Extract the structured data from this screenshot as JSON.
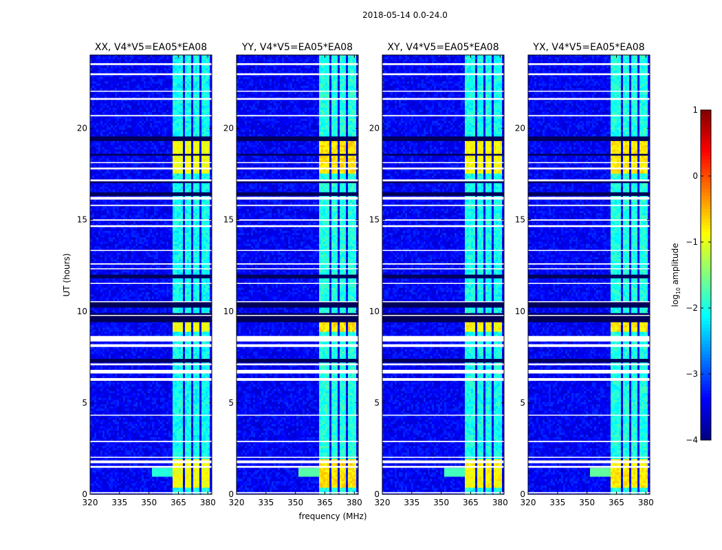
{
  "chart_data": {
    "type": "heatmap",
    "suptitle": "2018-05-14 0.0-24.0",
    "xlabel": "frequency (MHz)",
    "ylabel": "UT (hours)",
    "xlim": [
      320,
      382
    ],
    "ylim": [
      0,
      24
    ],
    "xticks": [
      320,
      335,
      350,
      365,
      380
    ],
    "yticks": [
      0,
      5,
      10,
      15,
      20
    ],
    "panels": [
      {
        "title": "XX, V4*V5=EA05*EA08",
        "rfi_strength": 0.55,
        "dip_1h": 0.25
      },
      {
        "title": "YY, V4*V5=EA05*EA08",
        "rfi_strength": 0.72,
        "dip_1h": 0.5
      },
      {
        "title": "XY, V4*V5=EA05*EA08",
        "rfi_strength": 0.6,
        "dip_1h": 0.4
      },
      {
        "title": "YX, V4*V5=EA05*EA08",
        "rfi_strength": 0.68,
        "dip_1h": 0.55
      }
    ],
    "rfi_band_mhz": [
      362,
      381
    ],
    "rfi_sub_gaps_mhz": [
      [
        367,
        368
      ],
      [
        371.5,
        372.5
      ],
      [
        376,
        377.2
      ]
    ],
    "rfi_strong_ut": [
      [
        0.3,
        1.9
      ],
      [
        8.9,
        9.6
      ],
      [
        17.5,
        19.3
      ]
    ],
    "flagged_ut_white": [
      [
        0.05,
        0.12
      ],
      [
        1.45,
        1.55
      ],
      [
        1.7,
        1.85
      ],
      [
        2.0,
        2.05
      ],
      [
        2.85,
        2.92
      ],
      [
        4.3,
        4.35
      ],
      [
        6.2,
        6.35
      ],
      [
        6.6,
        6.8
      ],
      [
        7.05,
        7.15
      ],
      [
        8.05,
        8.2
      ],
      [
        8.35,
        8.65
      ],
      [
        9.75,
        9.8
      ],
      [
        10.5,
        10.55
      ],
      [
        11.5,
        11.55
      ],
      [
        12.3,
        12.35
      ],
      [
        12.55,
        12.62
      ],
      [
        13.3,
        13.35
      ],
      [
        14.6,
        14.7
      ],
      [
        14.95,
        15.02
      ],
      [
        15.75,
        15.82
      ],
      [
        16.1,
        16.25
      ],
      [
        17.1,
        17.2
      ],
      [
        17.75,
        17.85
      ],
      [
        18.1,
        18.15
      ],
      [
        20.65,
        20.72
      ],
      [
        21.55,
        21.65
      ],
      [
        22.0,
        22.05
      ],
      [
        22.9,
        23.0
      ],
      [
        23.45,
        23.55
      ]
    ],
    "flagged_ut_dark": [
      [
        6.2,
        6.3
      ],
      [
        7.2,
        7.4
      ],
      [
        9.4,
        9.9
      ],
      [
        10.2,
        10.5
      ],
      [
        11.8,
        12.0
      ],
      [
        16.3,
        16.5
      ],
      [
        17.0,
        17.1
      ],
      [
        18.5,
        18.6
      ],
      [
        19.3,
        19.55
      ]
    ],
    "colorbar": {
      "label": "log10 amplitude",
      "label_prefix": "log",
      "label_sub": "10",
      "label_suffix": " amplitude",
      "ticks": [
        1,
        0,
        -1,
        -2,
        -3,
        -4
      ],
      "tick_labels": [
        "1",
        "0",
        "−1",
        "−2",
        "−3",
        "−4"
      ],
      "vmin": -4,
      "vmax": 1,
      "colormap": "jet"
    }
  }
}
